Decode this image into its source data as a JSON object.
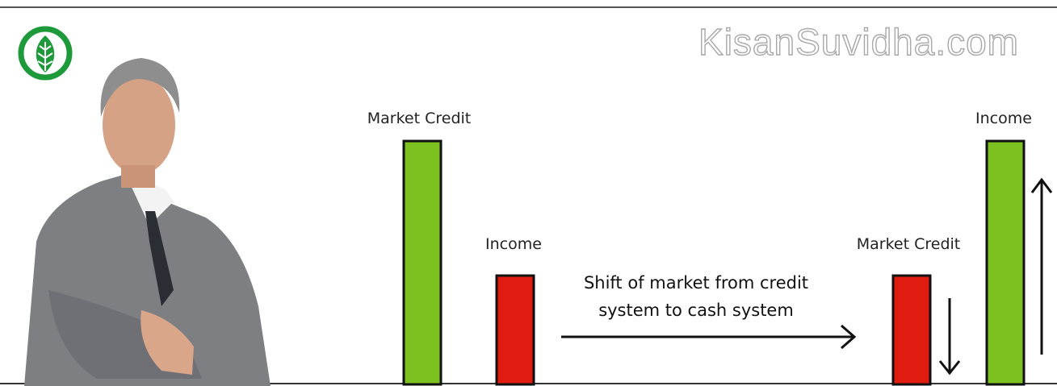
{
  "watermark": "KisanSuvidha.com",
  "before": {
    "bars": [
      {
        "label": "Market Credit"
      },
      {
        "label": "Income"
      }
    ]
  },
  "after": {
    "bars": [
      {
        "label": "Market Credit"
      },
      {
        "label": "Income"
      }
    ]
  },
  "shift_text": [
    "Shift of market from credit",
    "system to cash system"
  ]
}
